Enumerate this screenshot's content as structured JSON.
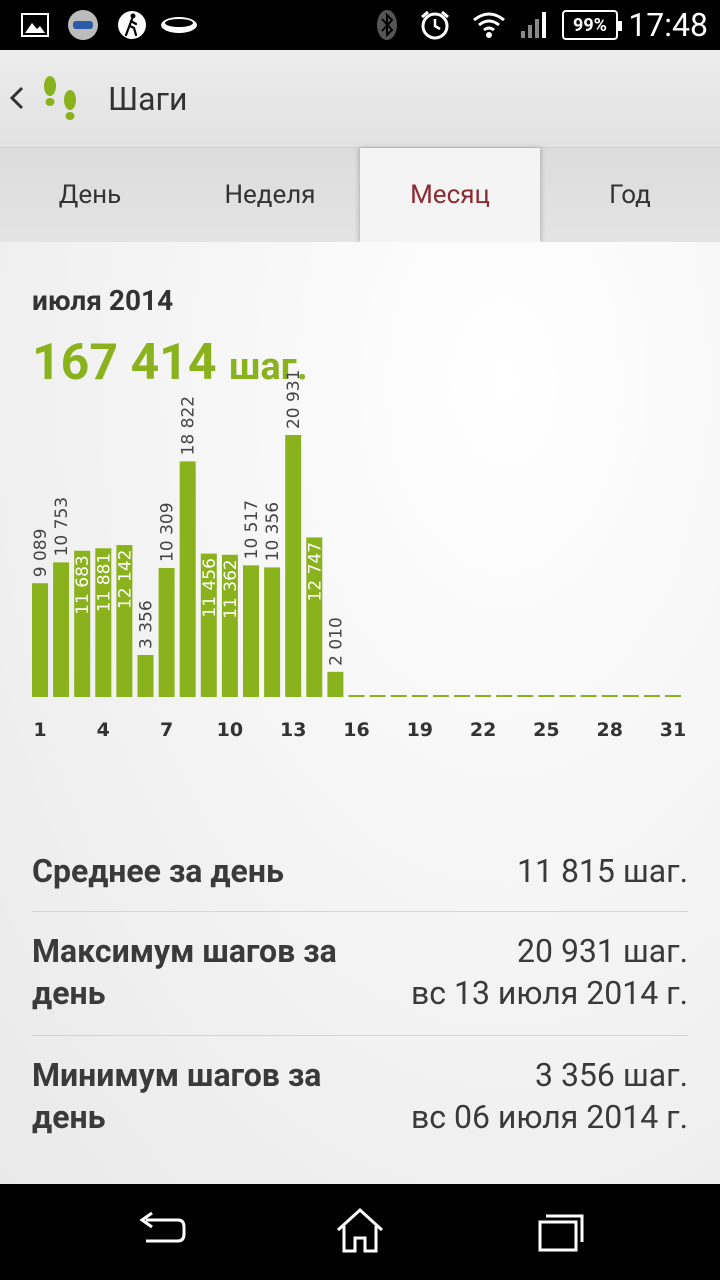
{
  "status_bar": {
    "time": "17:48",
    "battery": "99%",
    "icons": [
      "image-icon",
      "3d-app-icon",
      "walking-icon",
      "band-icon",
      "bluetooth-icon",
      "alarm-icon",
      "wifi-icon",
      "signal-icon"
    ]
  },
  "header": {
    "title": "Шаги"
  },
  "tabs": [
    {
      "label": "День",
      "active": false
    },
    {
      "label": "Неделя",
      "active": false
    },
    {
      "label": "Месяц",
      "active": true
    },
    {
      "label": "Год",
      "active": false
    }
  ],
  "summary": {
    "period": "июля 2014",
    "total_value": "167 414",
    "total_unit": "шаг."
  },
  "colors": {
    "accent": "#8ab21d",
    "active_tab": "#8c2a32",
    "text": "#333333"
  },
  "chart_data": {
    "type": "bar",
    "x": [
      1,
      2,
      3,
      4,
      5,
      6,
      7,
      8,
      9,
      10,
      11,
      12,
      13,
      14,
      15,
      16,
      17,
      18,
      19,
      20,
      21,
      22,
      23,
      24,
      25,
      26,
      27,
      28,
      29,
      30,
      31
    ],
    "values": [
      9089,
      10753,
      11683,
      11881,
      12142,
      3356,
      10309,
      18822,
      11456,
      11362,
      10517,
      10356,
      20931,
      12747,
      2010,
      0,
      0,
      0,
      0,
      0,
      0,
      0,
      0,
      0,
      0,
      0,
      0,
      0,
      0,
      0,
      0
    ],
    "value_labels": [
      "9 089",
      "10 753",
      "11 683",
      "11 881",
      "12 142",
      "3 356",
      "10 309",
      "18 822",
      "11 456",
      "11 362",
      "10 517",
      "10 356",
      "20 931",
      "12 747",
      "2 010",
      "",
      "",
      "",
      "",
      "",
      "",
      "",
      "",
      "",
      "",
      "",
      "",
      "",
      "",
      "",
      ""
    ],
    "x_tick_labels": [
      "1",
      "4",
      "7",
      "10",
      "13",
      "16",
      "19",
      "22",
      "25",
      "28",
      "31"
    ],
    "ylim": [
      0,
      20931
    ]
  },
  "stats": {
    "avg_label": "Среднее за день",
    "avg_value": "11 815 шаг.",
    "max_label_1": "Максимум шагов за",
    "max_label_2": "день",
    "max_value": "20 931 шаг.",
    "max_date": "вс 13 июля 2014 г.",
    "min_label_1": "Минимум шагов за",
    "min_label_2": "день",
    "min_value": "3 356 шаг.",
    "min_date": "вс 06 июля 2014 г."
  }
}
